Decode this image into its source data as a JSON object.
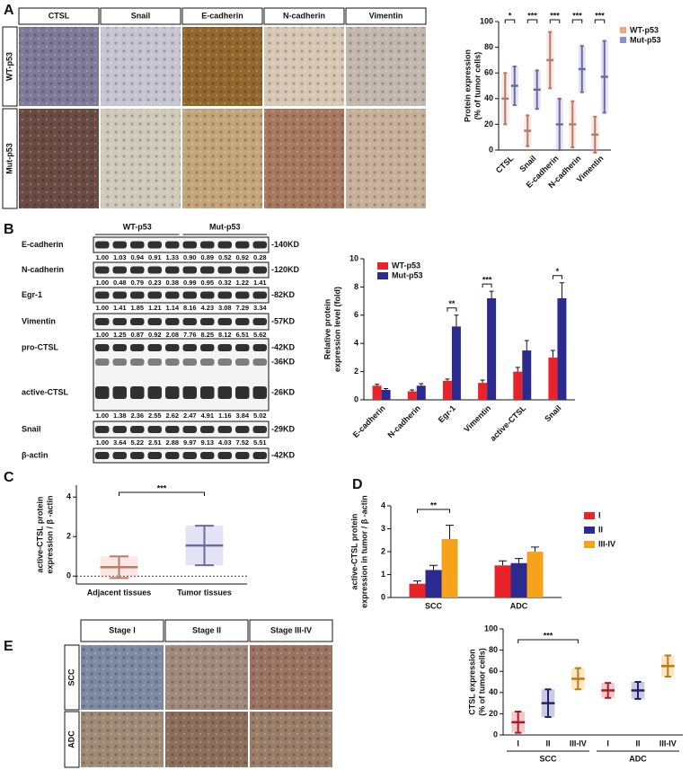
{
  "panel_labels": [
    "A",
    "B",
    "C",
    "D",
    "E"
  ],
  "ihc_a": {
    "columns": [
      "CTSL",
      "Snail",
      "E-cadherin",
      "N-cadherin",
      "Vimentin"
    ],
    "rows": [
      "WT-p53",
      "Mut-p53"
    ]
  },
  "blot": {
    "groups": [
      "WT-p53",
      "Mut-p53"
    ],
    "rows": [
      {
        "labels": [
          "E-cadherin"
        ],
        "kd": [
          "-140KD"
        ],
        "quant": [
          "1.00",
          "1.03",
          "0.94",
          "0.91",
          "1.33",
          "0.90",
          "0.89",
          "0.52",
          "0.92",
          "0.28"
        ]
      },
      {
        "labels": [
          "N-cadherin"
        ],
        "kd": [
          "-120KD"
        ],
        "quant": [
          "1.00",
          "0.48",
          "0.79",
          "0.23",
          "0.38",
          "0.99",
          "0.95",
          "0.32",
          "1.22",
          "1.41"
        ]
      },
      {
        "labels": [
          "Egr-1"
        ],
        "kd": [
          "-82KD"
        ],
        "quant": [
          "1.00",
          "1.41",
          "1.85",
          "1.21",
          "1.14",
          "8.16",
          "4.23",
          "3.08",
          "7.29",
          "3.34"
        ]
      },
      {
        "labels": [
          "Vimentin"
        ],
        "kd": [
          "-57KD"
        ],
        "quant": [
          "1.00",
          "1.25",
          "0.87",
          "0.92",
          "2.08",
          "7.76",
          "8.25",
          "8.12",
          "6.51",
          "5.62"
        ]
      },
      {
        "labels": [
          "pro-CTSL",
          "active-CTSL"
        ],
        "kd": [
          "-42KD",
          "-36KD",
          "-26KD"
        ],
        "quant": [
          "1.00",
          "1.38",
          "2.36",
          "2.55",
          "2.62",
          "2.47",
          "4.91",
          "1.16",
          "3.84",
          "5.02"
        ]
      },
      {
        "labels": [
          "Snail"
        ],
        "kd": [
          "-29KD"
        ],
        "quant": [
          "1.00",
          "3.64",
          "5.22",
          "2.51",
          "2.88",
          "9.97",
          "9.13",
          "4.03",
          "7.52",
          "5.51"
        ]
      },
      {
        "labels": [
          "β-actin"
        ],
        "kd": [
          "-42KD"
        ]
      }
    ]
  },
  "ihc_e": {
    "columns": [
      "Stage I",
      "Stage II",
      "Stage III-IV"
    ],
    "rows": [
      "SCC",
      "ADC"
    ]
  },
  "chart_data": [
    {
      "type": "dot",
      "ylabel": [
        "Protein expression",
        "(% of tumor cells)"
      ],
      "categories": [
        "CTSL",
        "Snail",
        "E-cadherin",
        "N-cadherin",
        "Vimentin"
      ],
      "series": [
        {
          "name": "WT-p53",
          "color": "#f2a48a",
          "values": [
            40,
            15,
            70,
            20,
            12
          ],
          "errors": [
            20,
            12,
            22,
            18,
            14
          ]
        },
        {
          "name": "Mut-p53",
          "color": "#8e8ed6",
          "values": [
            50,
            47,
            20,
            63,
            57
          ],
          "errors": [
            15,
            15,
            20,
            18,
            28
          ]
        }
      ],
      "significance": [
        "*",
        "***",
        "***",
        "***",
        "***"
      ],
      "ylim": [
        0,
        100
      ],
      "yticks": [
        0,
        20,
        40,
        60,
        80,
        100
      ],
      "legend": "right"
    },
    {
      "type": "bar",
      "ylabel": [
        "Relative protein",
        "expression level (fold)"
      ],
      "categories": [
        "E-cadherin",
        "N-cadherin",
        "Egr-1",
        "Vimentin",
        "active-CTSL",
        "Snail"
      ],
      "series": [
        {
          "name": "WT-p53",
          "color": "#e8232a",
          "values": [
            1.0,
            0.6,
            1.35,
            1.2,
            2.0,
            3.0
          ],
          "errors": [
            0.1,
            0.1,
            0.12,
            0.2,
            0.3,
            0.5
          ]
        },
        {
          "name": "Mut-p53",
          "color": "#2b2a8f",
          "values": [
            0.7,
            1.0,
            5.2,
            7.2,
            3.5,
            7.2
          ],
          "errors": [
            0.1,
            0.15,
            0.8,
            0.5,
            0.7,
            1.1
          ]
        }
      ],
      "significance": [
        null,
        null,
        "**",
        "***",
        null,
        "*"
      ],
      "ylim": [
        0,
        10
      ],
      "yticks": [
        0,
        2,
        4,
        6,
        8,
        10
      ],
      "legend": "upper left"
    },
    {
      "type": "dot",
      "ylabel": [
        "active-CTSL protein",
        "expression / β -actin"
      ],
      "categories": [
        "Adjacent tissues",
        "Tumor tissues"
      ],
      "values": [
        0.45,
        1.55
      ],
      "errors": [
        0.55,
        1.0
      ],
      "colors": [
        "#f2a48a",
        "#8e8ed6"
      ],
      "significance": [
        "***"
      ],
      "zero_line": true,
      "ylim": [
        -0.4,
        4.6
      ],
      "yticks": [
        0,
        2,
        4
      ]
    },
    {
      "type": "bar",
      "ylabel": [
        "active-CTSL protein",
        "expression in tumor / β -actin"
      ],
      "categories": [
        "SCC",
        "ADC"
      ],
      "series": [
        {
          "name": "I",
          "color": "#e8232a",
          "values": [
            0.6,
            1.4
          ],
          "errors": [
            0.12,
            0.2
          ]
        },
        {
          "name": "II",
          "color": "#2b2a8f",
          "values": [
            1.2,
            1.5
          ],
          "errors": [
            0.2,
            0.2
          ]
        },
        {
          "name": "III-IV",
          "color": "#f7a21b",
          "values": [
            2.55,
            2.0
          ],
          "errors": [
            0.6,
            0.2
          ]
        }
      ],
      "significance": [
        "**"
      ],
      "ylim": [
        0,
        4
      ],
      "yticks": [
        0,
        1,
        2,
        3,
        4
      ],
      "legend": "right"
    },
    {
      "type": "dot",
      "ylabel": [
        "CTSL expression",
        "(% of tumor cells)"
      ],
      "categories": [
        "I",
        "II",
        "III-IV",
        "I",
        "II",
        "III-IV"
      ],
      "values": [
        12,
        30,
        53,
        42,
        42,
        65
      ],
      "errors": [
        10,
        13,
        10,
        7,
        8,
        10
      ],
      "colors": [
        "#e8232a",
        "#2b2a8f",
        "#f7a21b",
        "#e8232a",
        "#2b2a8f",
        "#f7a21b"
      ],
      "groups": [
        "SCC",
        "ADC"
      ],
      "significance": [
        "***"
      ],
      "ylim": [
        0,
        100
      ],
      "yticks": [
        0,
        20,
        40,
        60,
        80,
        100
      ]
    }
  ]
}
